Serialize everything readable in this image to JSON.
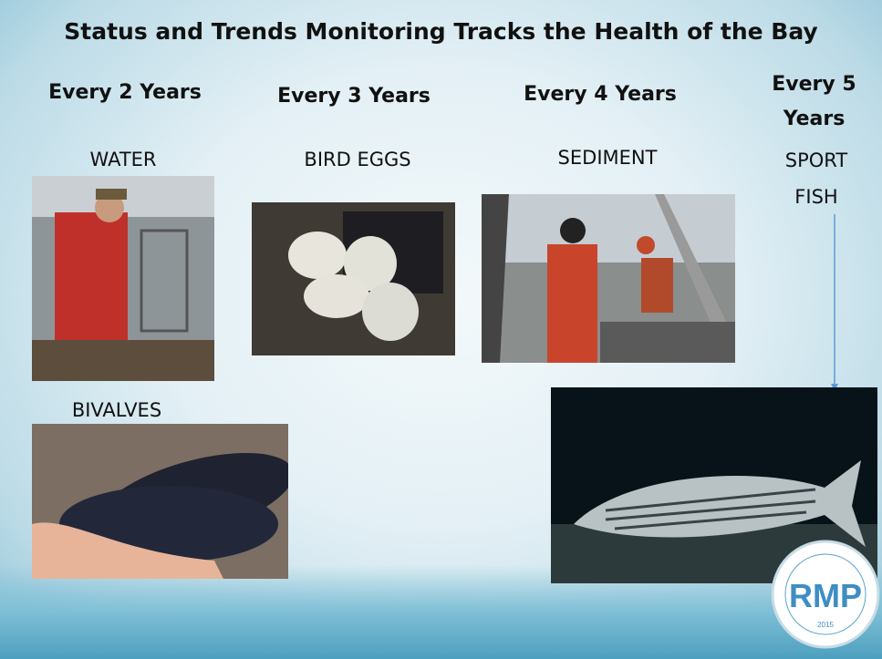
{
  "slide": {
    "title": "Status and Trends Monitoring Tracks the Health of the Bay",
    "columns": [
      {
        "frequency": "Every 2 Years",
        "items": [
          "WATER",
          "BIVALVES"
        ]
      },
      {
        "frequency": "Every 3 Years",
        "items": [
          "BIRD EGGS"
        ]
      },
      {
        "frequency": "Every 4 Years",
        "items": [
          "SEDIMENT"
        ]
      },
      {
        "frequency": "Every 5 Years",
        "items": [
          "SPORT FISH"
        ]
      }
    ],
    "logo": {
      "name": "RMP",
      "year": "2015"
    }
  }
}
